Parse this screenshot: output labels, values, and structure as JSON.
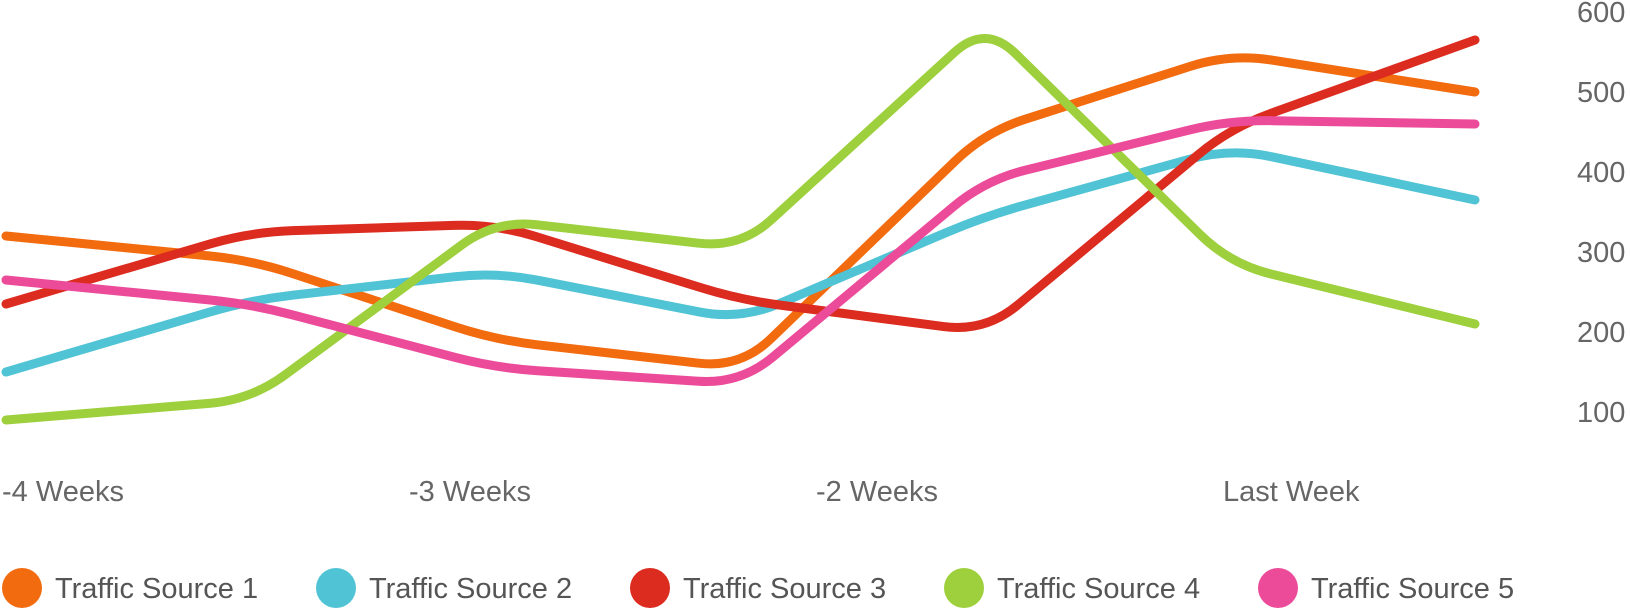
{
  "chart_data": {
    "type": "line",
    "title": "",
    "xlabel": "",
    "ylabel": "",
    "x_tick_labels": [
      "-4 Weeks",
      "-3 Weeks",
      "-2 Weeks",
      "Last Week"
    ],
    "y_ticks": [
      100,
      200,
      300,
      400,
      500,
      600
    ],
    "ylim": [
      0,
      600
    ],
    "y_axis_position": "right",
    "grid": false,
    "legend_position": "bottom",
    "x": [
      0,
      1,
      2,
      3,
      4,
      5,
      6
    ],
    "series": [
      {
        "name": "Traffic Source 1",
        "color": "#f26b0f",
        "values": [
          320,
          290,
          190,
          155,
          450,
          548,
          500
        ]
      },
      {
        "name": "Traffic Source 2",
        "color": "#50c3d5",
        "values": [
          150,
          240,
          275,
          215,
          345,
          430,
          365
        ]
      },
      {
        "name": "Traffic Source 3",
        "color": "#dc2b1f",
        "values": [
          235,
          325,
          335,
          240,
          200,
          455,
          565
        ]
      },
      {
        "name": "Traffic Source 4",
        "color": "#9dd03c",
        "values": [
          90,
          115,
          340,
          305,
          585,
          285,
          210
        ]
      },
      {
        "name": "Traffic Source 5",
        "color": "#ec4b9a",
        "values": [
          265,
          235,
          155,
          135,
          390,
          465,
          460
        ]
      }
    ]
  }
}
